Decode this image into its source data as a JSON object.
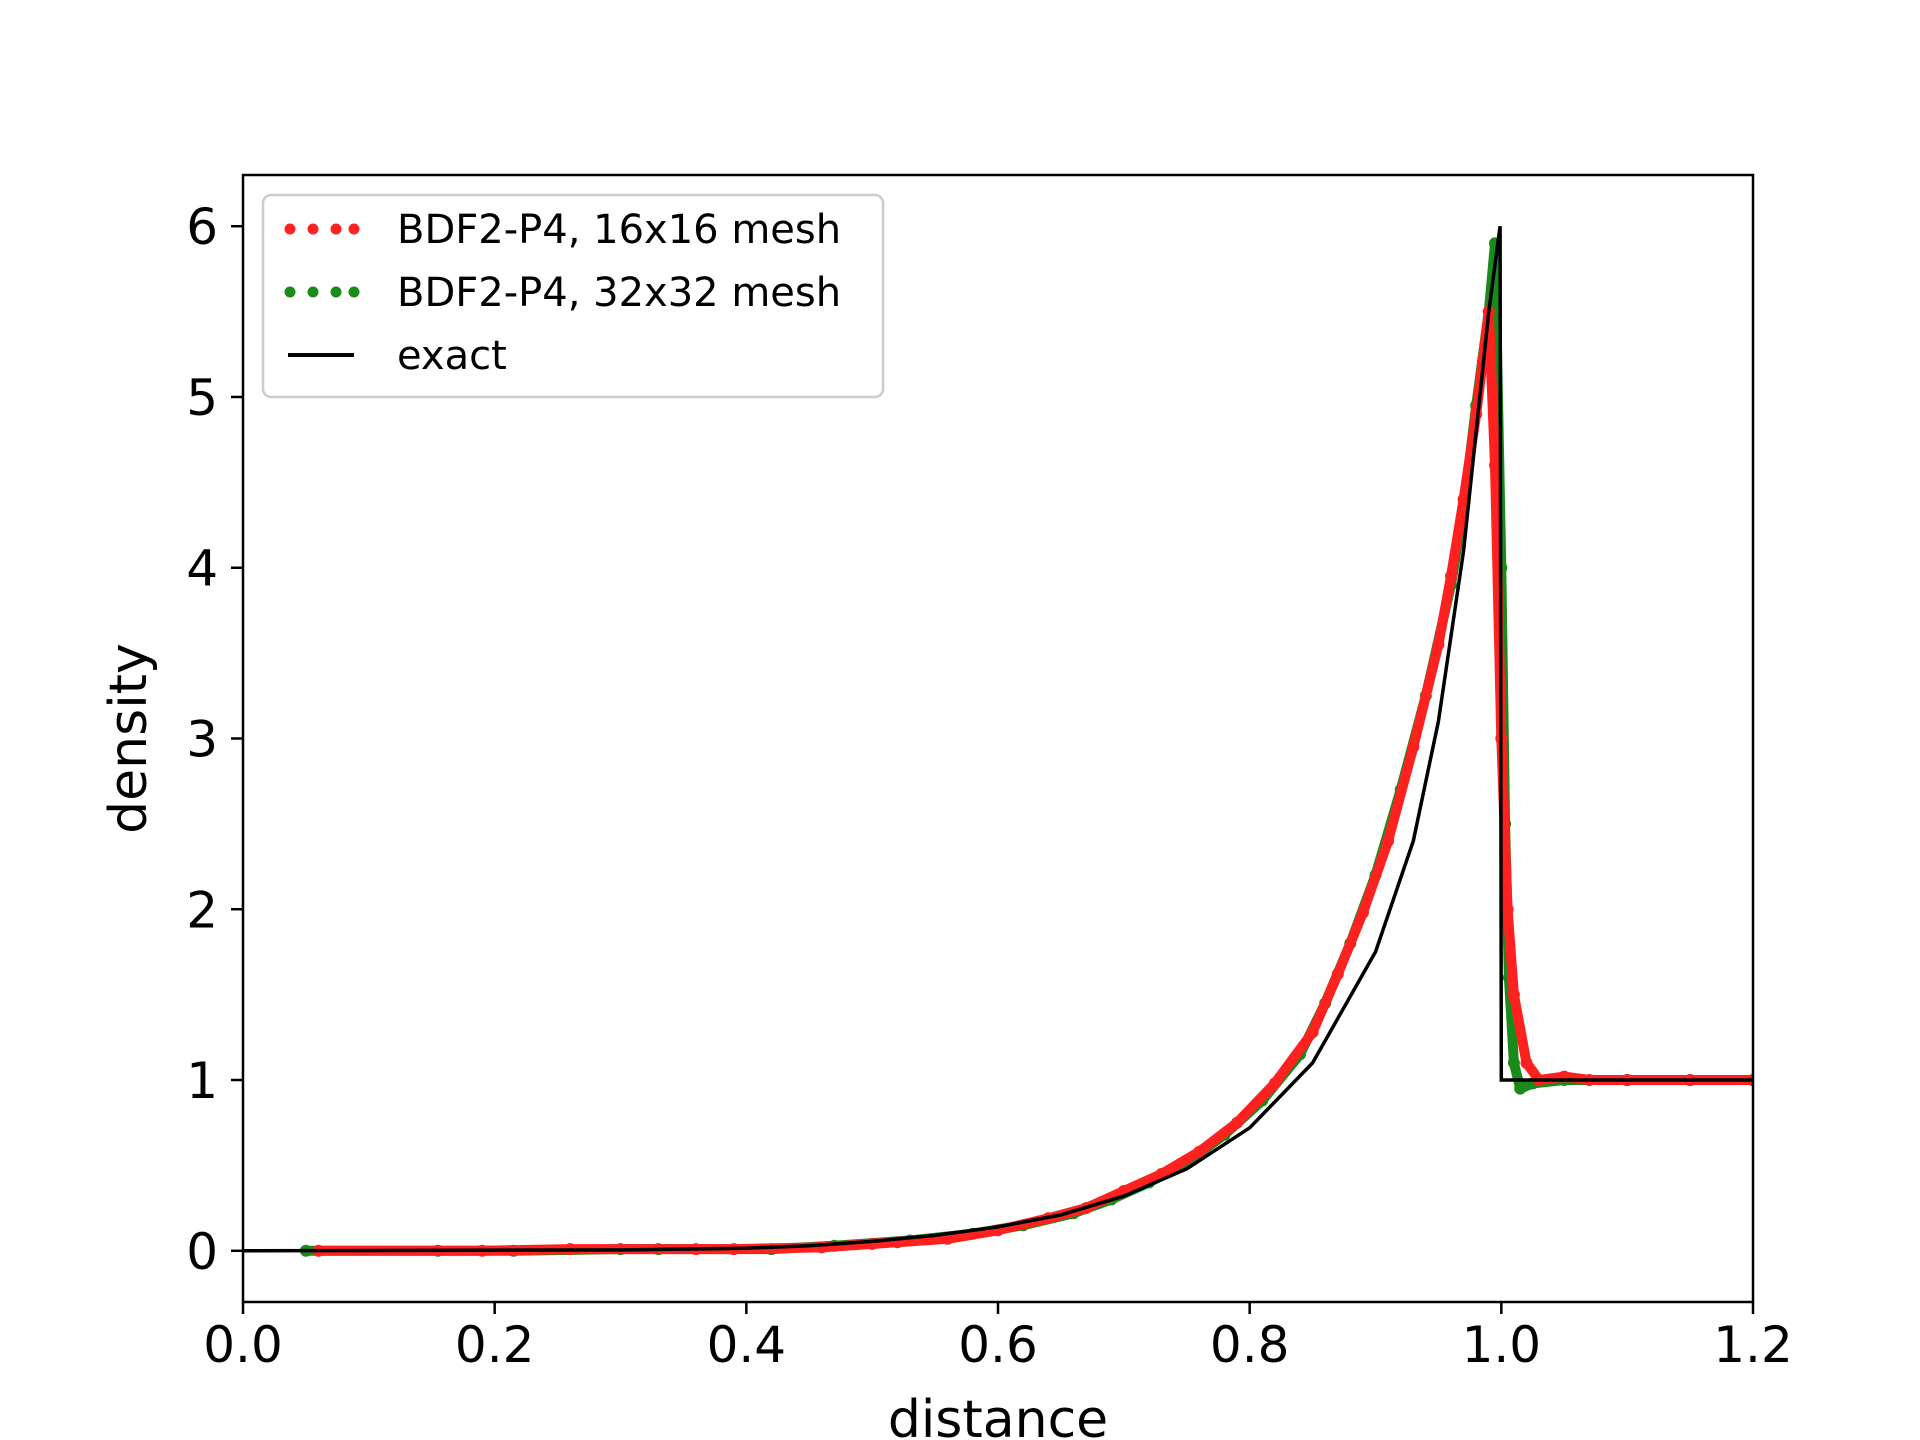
{
  "chart_data": {
    "type": "scatter",
    "title": "",
    "xlabel": "distance",
    "ylabel": "density",
    "xlim": [
      0.0,
      1.2
    ],
    "ylim": [
      -0.3,
      6.3
    ],
    "grid": false,
    "legend_position": "top-left",
    "xticks": [
      "0.0",
      "0.2",
      "0.4",
      "0.6",
      "0.8",
      "1.0",
      "1.2"
    ],
    "yticks": [
      "0",
      "1",
      "2",
      "3",
      "4",
      "5",
      "6"
    ],
    "series": [
      {
        "name": "BDF2-P4, 16x16 mesh",
        "style": "dotted",
        "color": "#ff2020",
        "points": [
          [
            0.06,
            0.0
          ],
          [
            0.19,
            0.0
          ],
          [
            0.26,
            0.01
          ],
          [
            0.36,
            0.01
          ],
          [
            0.39,
            0.01
          ],
          [
            0.46,
            0.02
          ],
          [
            0.5,
            0.04
          ],
          [
            0.52,
            0.05
          ],
          [
            0.56,
            0.07
          ],
          [
            0.6,
            0.12
          ],
          [
            0.64,
            0.19
          ],
          [
            0.67,
            0.25
          ],
          [
            0.7,
            0.35
          ],
          [
            0.73,
            0.45
          ],
          [
            0.76,
            0.58
          ],
          [
            0.79,
            0.75
          ],
          [
            0.82,
            0.98
          ],
          [
            0.85,
            1.28
          ],
          [
            0.87,
            1.62
          ],
          [
            0.89,
            1.98
          ],
          [
            0.91,
            2.4
          ],
          [
            0.93,
            2.95
          ],
          [
            0.95,
            3.55
          ],
          [
            0.96,
            3.95
          ],
          [
            0.97,
            4.4
          ],
          [
            0.98,
            4.9
          ],
          [
            0.99,
            5.5
          ],
          [
            0.995,
            4.6
          ],
          [
            1.0,
            3.0
          ],
          [
            1.005,
            2.0
          ],
          [
            1.01,
            1.5
          ],
          [
            1.02,
            1.1
          ],
          [
            1.03,
            1.0
          ],
          [
            1.05,
            1.02
          ],
          [
            1.07,
            1.0
          ],
          [
            1.1,
            1.0
          ],
          [
            1.15,
            1.0
          ],
          [
            1.2,
            1.0
          ]
        ]
      },
      {
        "name": "BDF2-P4, 32x32 mesh",
        "style": "dotted",
        "color": "#1a8a1a",
        "points": [
          [
            0.05,
            0.0
          ],
          [
            0.155,
            0.0
          ],
          [
            0.215,
            0.0
          ],
          [
            0.3,
            0.01
          ],
          [
            0.33,
            0.01
          ],
          [
            0.42,
            0.01
          ],
          [
            0.47,
            0.03
          ],
          [
            0.53,
            0.06
          ],
          [
            0.58,
            0.1
          ],
          [
            0.62,
            0.15
          ],
          [
            0.66,
            0.22
          ],
          [
            0.69,
            0.3
          ],
          [
            0.72,
            0.4
          ],
          [
            0.75,
            0.52
          ],
          [
            0.78,
            0.68
          ],
          [
            0.81,
            0.88
          ],
          [
            0.84,
            1.15
          ],
          [
            0.86,
            1.45
          ],
          [
            0.88,
            1.8
          ],
          [
            0.9,
            2.2
          ],
          [
            0.92,
            2.7
          ],
          [
            0.94,
            3.25
          ],
          [
            0.96,
            3.9
          ],
          [
            0.97,
            4.35
          ],
          [
            0.98,
            4.95
          ],
          [
            0.99,
            5.5
          ],
          [
            0.995,
            5.9
          ],
          [
            1.0,
            4.0
          ],
          [
            1.003,
            2.5
          ],
          [
            1.006,
            1.6
          ],
          [
            1.01,
            1.1
          ],
          [
            1.015,
            0.95
          ],
          [
            1.025,
            0.98
          ],
          [
            1.05,
            1.0
          ],
          [
            1.1,
            1.0
          ],
          [
            1.15,
            1.0
          ],
          [
            1.2,
            1.0
          ]
        ]
      },
      {
        "name": "exact",
        "style": "solid",
        "color": "#000000",
        "points": [
          [
            0.0,
            0.0
          ],
          [
            0.3,
            0.005
          ],
          [
            0.4,
            0.015
          ],
          [
            0.45,
            0.03
          ],
          [
            0.5,
            0.055
          ],
          [
            0.55,
            0.09
          ],
          [
            0.6,
            0.14
          ],
          [
            0.65,
            0.21
          ],
          [
            0.7,
            0.32
          ],
          [
            0.75,
            0.48
          ],
          [
            0.8,
            0.72
          ],
          [
            0.85,
            1.1
          ],
          [
            0.9,
            1.75
          ],
          [
            0.93,
            2.4
          ],
          [
            0.95,
            3.1
          ],
          [
            0.97,
            4.1
          ],
          [
            0.98,
            4.8
          ],
          [
            0.99,
            5.5
          ],
          [
            0.999,
            6.0
          ],
          [
            1.0,
            1.0
          ],
          [
            1.2,
            1.0
          ]
        ]
      }
    ]
  }
}
